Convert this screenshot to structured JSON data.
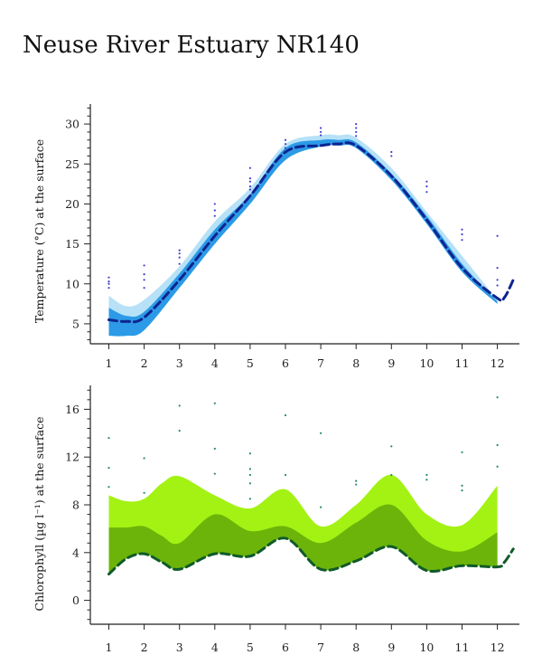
{
  "title": "Neuse River Estuary NR140",
  "chart_data": [
    {
      "type": "area",
      "ylabel": "Temperature (°C) at the surface",
      "xlabel": "",
      "xlim": [
        0.85,
        12.45
      ],
      "ylim": [
        2.5,
        32.5
      ],
      "xticks": [
        1,
        2,
        3,
        4,
        5,
        6,
        7,
        8,
        9,
        10,
        11,
        12
      ],
      "yticks": [
        5,
        10,
        15,
        20,
        25,
        30
      ],
      "colors": {
        "outer_band": "#b6e1f7",
        "inner_band": "#2c9ae6",
        "median_line": "#0f2390",
        "points": "#4040cc"
      },
      "bands": [
        {
          "name": "outer",
          "x": [
            1,
            1.5,
            2,
            3,
            4,
            5,
            6,
            7,
            7.5,
            8,
            9,
            10,
            11,
            12
          ],
          "lower": [
            3.5,
            3.5,
            4.2,
            9.5,
            15.0,
            20.0,
            25.5,
            27.2,
            27.3,
            27.0,
            23.0,
            17.5,
            11.5,
            7.5
          ],
          "upper": [
            8.5,
            7.2,
            8.0,
            12.2,
            17.8,
            22.0,
            27.5,
            28.6,
            28.6,
            28.3,
            24.5,
            19.0,
            13.5,
            8.0
          ]
        },
        {
          "name": "inner",
          "x": [
            1,
            1.5,
            2,
            3,
            4,
            5,
            6,
            7,
            7.5,
            8,
            9,
            10,
            11,
            12
          ],
          "lower": [
            3.5,
            3.5,
            4.2,
            9.5,
            15.0,
            20.0,
            25.5,
            27.2,
            27.3,
            27.0,
            23.0,
            17.5,
            11.5,
            7.5
          ],
          "upper": [
            7.0,
            6.0,
            6.5,
            11.3,
            16.8,
            21.2,
            27.0,
            28.0,
            28.0,
            27.7,
            23.8,
            18.5,
            12.5,
            7.8
          ]
        }
      ],
      "median": {
        "x": [
          1,
          1.5,
          2,
          3,
          4,
          5,
          6,
          7,
          7.5,
          8,
          9,
          10,
          11,
          12,
          12.2,
          12.45
        ],
        "y": [
          5.5,
          5.3,
          5.8,
          10.5,
          16.0,
          21.0,
          26.5,
          27.3,
          27.5,
          27.3,
          23.5,
          18.0,
          12.0,
          8.2,
          8.3,
          10.5
        ]
      },
      "points": {
        "x": [
          1,
          1,
          1,
          1,
          2,
          2,
          2,
          2,
          3,
          3,
          3,
          3,
          4,
          4,
          4,
          5,
          5,
          5,
          5,
          5,
          6,
          6,
          6,
          6,
          7,
          7,
          7,
          8,
          8,
          8,
          8,
          9,
          9,
          10,
          10,
          10,
          11,
          11,
          11,
          12,
          12,
          12,
          12
        ],
        "y": [
          9.5,
          10.0,
          10.3,
          10.8,
          9.5,
          10.5,
          11.2,
          12.3,
          12.5,
          13.3,
          13.8,
          14.2,
          18.5,
          19.2,
          20.0,
          21.8,
          22.2,
          22.8,
          23.2,
          24.5,
          26.5,
          27.0,
          27.5,
          28.0,
          28.6,
          29.0,
          29.5,
          28.5,
          29.0,
          29.5,
          30.0,
          26.0,
          26.5,
          21.5,
          22.2,
          22.8,
          15.5,
          16.2,
          16.8,
          9.8,
          10.5,
          12.0,
          16.0
        ]
      }
    },
    {
      "type": "area",
      "ylabel": "Chlorophyll (µg l⁻¹) at the surface",
      "xlabel": "",
      "xlim": [
        0.85,
        12.45
      ],
      "ylim": [
        -2,
        18
      ],
      "xticks": [
        1,
        2,
        3,
        4,
        5,
        6,
        7,
        8,
        9,
        10,
        11,
        12
      ],
      "yticks": [
        0,
        4,
        8,
        12,
        16
      ],
      "colors": {
        "outer_band": "#a3f214",
        "inner_band": "#6cb409",
        "median_line": "#0f5a2a",
        "points": "#268a6a"
      },
      "bands": [
        {
          "name": "outer",
          "x": [
            1,
            1.5,
            2,
            2.5,
            3,
            4,
            5,
            6,
            7,
            8,
            9,
            10,
            11,
            12
          ],
          "lower": [
            2.2,
            3.5,
            3.9,
            3.2,
            2.6,
            3.9,
            3.7,
            5.2,
            2.6,
            3.3,
            4.5,
            2.5,
            2.9,
            2.8
          ],
          "upper": [
            8.8,
            8.3,
            8.5,
            9.8,
            10.4,
            8.8,
            7.7,
            9.3,
            6.2,
            8.0,
            10.5,
            7.2,
            6.3,
            9.6
          ]
        },
        {
          "name": "inner",
          "x": [
            1,
            1.5,
            2,
            2.5,
            3,
            4,
            5,
            6,
            7,
            8,
            9,
            10,
            11,
            12
          ],
          "lower": [
            2.2,
            3.5,
            3.9,
            3.2,
            2.6,
            3.9,
            3.7,
            5.2,
            2.6,
            3.3,
            4.5,
            2.5,
            2.9,
            2.8
          ],
          "upper": [
            6.1,
            6.1,
            6.2,
            5.4,
            4.8,
            7.2,
            5.8,
            6.2,
            4.8,
            6.5,
            8.0,
            5.0,
            4.1,
            5.7
          ]
        }
      ],
      "median": {
        "x": [
          1,
          1.5,
          2,
          2.5,
          3,
          4,
          5,
          6,
          7,
          8,
          9,
          10,
          11,
          12,
          12.2,
          12.45
        ],
        "y": [
          2.2,
          3.5,
          3.9,
          3.2,
          2.6,
          3.9,
          3.7,
          5.2,
          2.6,
          3.3,
          4.5,
          2.5,
          2.9,
          2.8,
          3.2,
          4.3
        ]
      },
      "points": {
        "x": [
          1,
          1,
          1,
          2,
          2,
          3,
          3,
          4,
          4,
          4,
          5,
          5,
          5,
          5,
          5,
          6,
          6,
          7,
          7,
          8,
          8,
          9,
          9,
          10,
          10,
          11,
          11,
          11,
          12,
          12,
          12
        ],
        "y": [
          13.6,
          11.1,
          9.5,
          11.9,
          9.0,
          16.3,
          14.2,
          16.5,
          12.7,
          10.6,
          12.3,
          11.0,
          10.5,
          9.8,
          8.5,
          15.5,
          10.5,
          14.0,
          7.8,
          10.0,
          9.7,
          12.9,
          10.5,
          10.5,
          10.1,
          12.4,
          9.6,
          9.2,
          17.0,
          13.0,
          11.2
        ]
      }
    }
  ]
}
